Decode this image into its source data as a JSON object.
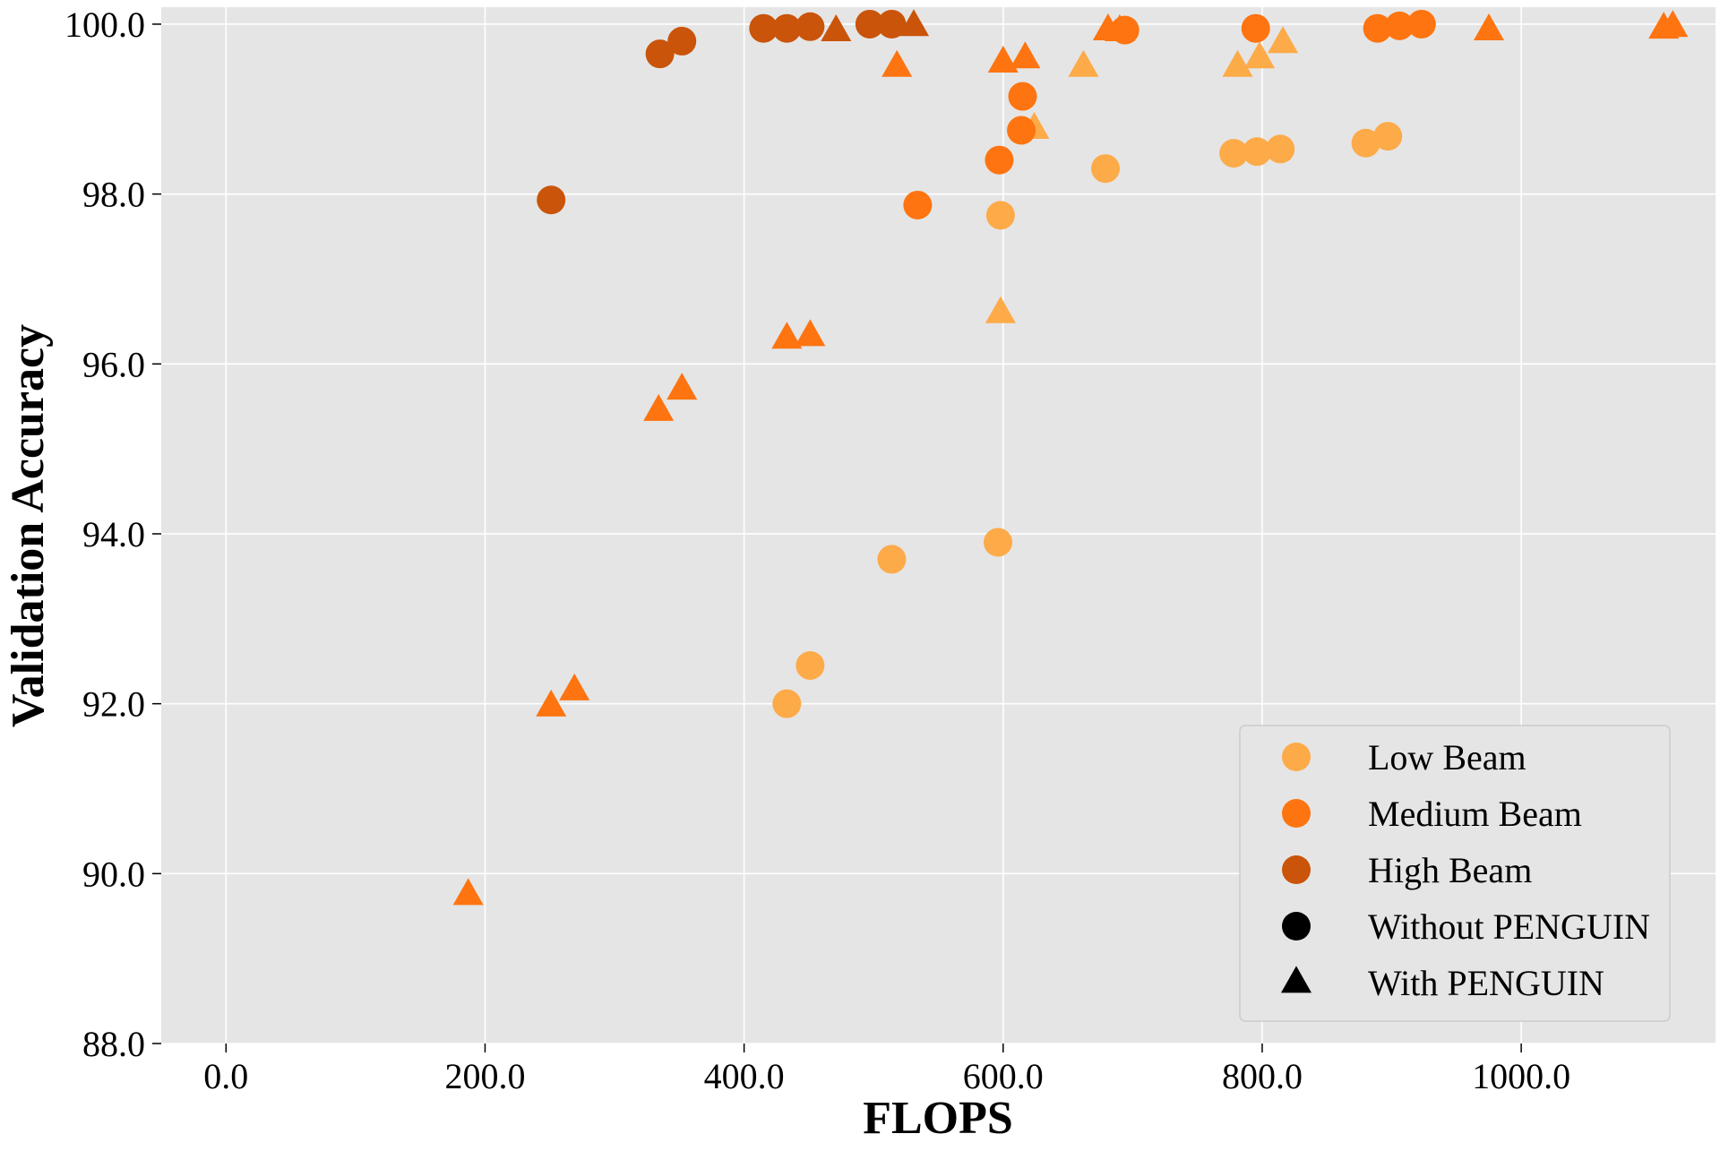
{
  "chart_data": {
    "type": "scatter",
    "xlabel": "FLOPS",
    "ylabel": "Validation Accuracy",
    "xlim": [
      -50,
      1150
    ],
    "ylim": [
      88,
      100.2
    ],
    "x_ticks": [
      "0.0",
      "200.0",
      "400.0",
      "600.0",
      "800.0",
      "1000.0"
    ],
    "x_tick_values": [
      0,
      200,
      400,
      600,
      800,
      1000
    ],
    "y_ticks": [
      "88.0",
      "90.0",
      "92.0",
      "94.0",
      "96.0",
      "98.0",
      "100.0"
    ],
    "y_tick_values": [
      88,
      90,
      92,
      94,
      96,
      98,
      100
    ],
    "grid": true,
    "background": "#e5e5e5",
    "grid_color": "#ffffff",
    "legend_position": "bottom-right",
    "legend": [
      {
        "label": "Low Beam",
        "marker": "circle",
        "color": "#fdaa48"
      },
      {
        "label": "Medium Beam",
        "marker": "circle",
        "color": "#fd7410"
      },
      {
        "label": "High Beam",
        "marker": "circle",
        "color": "#c9540a"
      },
      {
        "label": "Without PENGUIN",
        "marker": "circle",
        "color": "#000000"
      },
      {
        "label": "With PENGUIN",
        "marker": "triangle",
        "color": "#000000"
      }
    ],
    "series": [
      {
        "name": "Low Beam",
        "marker": "circle",
        "color": "#fdaa48",
        "points": [
          [
            433,
            92.0
          ],
          [
            451,
            92.45
          ],
          [
            514,
            93.7
          ],
          [
            596,
            93.9
          ],
          [
            598,
            97.75
          ],
          [
            679,
            98.3
          ],
          [
            778,
            98.48
          ],
          [
            796,
            98.5
          ],
          [
            814,
            98.53
          ],
          [
            880,
            98.6
          ],
          [
            897,
            98.68
          ]
        ]
      },
      {
        "name": "Low Beam",
        "marker": "triangle",
        "color": "#fdaa48",
        "points": [
          [
            598,
            96.6
          ],
          [
            624,
            98.77
          ],
          [
            662,
            99.5
          ],
          [
            781,
            99.5
          ],
          [
            798,
            99.6
          ],
          [
            816,
            99.78
          ]
        ]
      },
      {
        "name": "Medium Beam",
        "marker": "circle",
        "color": "#fd7410",
        "points": [
          [
            534,
            97.87
          ],
          [
            597,
            98.4
          ],
          [
            614,
            98.75
          ],
          [
            615,
            99.15
          ],
          [
            694,
            99.93
          ],
          [
            795,
            99.95
          ],
          [
            889,
            99.95
          ],
          [
            906,
            99.98
          ],
          [
            923,
            100.0
          ]
        ]
      },
      {
        "name": "Medium Beam",
        "marker": "triangle",
        "color": "#fd7410",
        "points": [
          [
            187,
            89.75
          ],
          [
            251,
            91.97
          ],
          [
            269,
            92.16
          ],
          [
            334,
            95.45
          ],
          [
            352,
            95.7
          ],
          [
            433,
            96.3
          ],
          [
            451,
            96.33
          ],
          [
            518,
            99.5
          ],
          [
            600,
            99.55
          ],
          [
            617,
            99.6
          ],
          [
            681,
            99.93
          ],
          [
            690,
            99.92
          ],
          [
            975,
            99.93
          ],
          [
            1110,
            99.95
          ],
          [
            1117,
            99.97
          ]
        ]
      },
      {
        "name": "High Beam",
        "marker": "circle",
        "color": "#c9540a",
        "points": [
          [
            251,
            97.93
          ],
          [
            335,
            99.65
          ],
          [
            352,
            99.8
          ],
          [
            415,
            99.95
          ],
          [
            433,
            99.95
          ],
          [
            451,
            99.97
          ],
          [
            497,
            100.0
          ],
          [
            514,
            100.0
          ]
        ]
      },
      {
        "name": "High Beam",
        "marker": "triangle",
        "color": "#c9540a",
        "points": [
          [
            471,
            99.92
          ],
          [
            531,
            99.98
          ]
        ]
      }
    ]
  }
}
